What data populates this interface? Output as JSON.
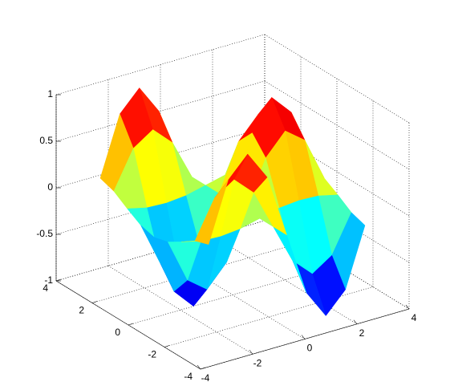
{
  "chart_data": {
    "type": "surface",
    "colormap": "jet",
    "grid": true,
    "x": [
      -3,
      -2.25,
      -1.5,
      -0.75,
      0,
      0.75,
      1.5,
      2.25,
      3
    ],
    "y": [
      -3,
      -2.25,
      -1.5,
      -0.75,
      0,
      0.75,
      1.5,
      2.25,
      3
    ],
    "z": [
      [
        0.14,
        0.77,
        0.99,
        0.68,
        0,
        -0.68,
        -0.99,
        -0.77,
        -0.14
      ],
      [
        0.09,
        0.49,
        0.63,
        0.43,
        0,
        -0.43,
        -0.63,
        -0.49,
        -0.09
      ],
      [
        -0.01,
        -0.06,
        -0.07,
        -0.05,
        0,
        0.05,
        0.07,
        0.06,
        0.01
      ],
      [
        -0.1,
        -0.57,
        -0.73,
        -0.5,
        0,
        0.5,
        0.73,
        0.57,
        0.1
      ],
      [
        -0.14,
        -0.78,
        -1,
        -0.68,
        0,
        0.68,
        1,
        0.78,
        0.14
      ],
      [
        -0.1,
        -0.57,
        -0.73,
        -0.5,
        0,
        0.5,
        0.73,
        0.57,
        0.1
      ],
      [
        -0.01,
        -0.06,
        -0.07,
        -0.05,
        0,
        0.05,
        0.07,
        0.06,
        0.01
      ],
      [
        0.09,
        0.49,
        0.63,
        0.43,
        0,
        -0.43,
        -0.63,
        -0.49,
        -0.09
      ],
      [
        0.14,
        0.77,
        0.99,
        0.68,
        0,
        -0.68,
        -0.99,
        -0.77,
        -0.14
      ]
    ],
    "xlim": [
      -4,
      4
    ],
    "ylim": [
      -4,
      4
    ],
    "zlim": [
      -1,
      1
    ],
    "xticks": [
      -4,
      -2,
      0,
      2,
      4
    ],
    "yticks": [
      -4,
      -2,
      0,
      2,
      4
    ],
    "zticks": [
      -1,
      -0.5,
      0,
      0.5,
      1
    ]
  }
}
